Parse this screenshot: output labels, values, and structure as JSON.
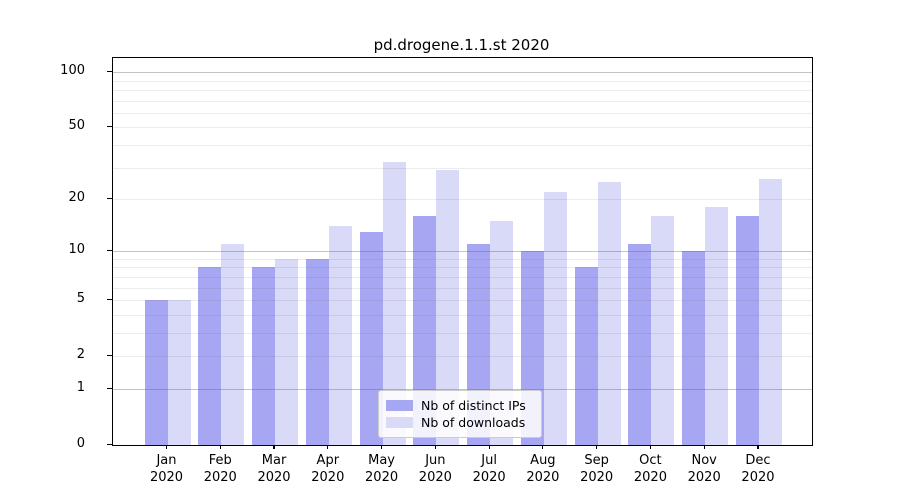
{
  "title": "pd.drogene.1.1.st 2020",
  "chart_data": {
    "type": "bar",
    "title": "pd.drogene.1.1.st 2020",
    "categories": [
      "Jan 2020",
      "Feb 2020",
      "Mar 2020",
      "Apr 2020",
      "May 2020",
      "Jun 2020",
      "Jul 2020",
      "Aug 2020",
      "Sep 2020",
      "Oct 2020",
      "Nov 2020",
      "Dec 2020"
    ],
    "x_tick_line1": [
      "Jan",
      "Feb",
      "Mar",
      "Apr",
      "May",
      "Jun",
      "Jul",
      "Aug",
      "Sep",
      "Oct",
      "Nov",
      "Dec"
    ],
    "x_tick_line2": [
      "2020",
      "2020",
      "2020",
      "2020",
      "2020",
      "2020",
      "2020",
      "2020",
      "2020",
      "2020",
      "2020",
      "2020"
    ],
    "series": [
      {
        "name": "Nb of distinct IPs",
        "color": "#a6a6f2",
        "values": [
          5,
          8,
          8,
          9,
          13,
          16,
          11,
          10,
          8,
          11,
          10,
          16
        ]
      },
      {
        "name": "Nb of downloads",
        "color": "#d9d9f8",
        "values": [
          5,
          11,
          9,
          14,
          32,
          29,
          15,
          22,
          25,
          16,
          18,
          26
        ]
      }
    ],
    "y_scale": "log1p",
    "ylim": [
      0,
      119
    ],
    "y_tick_values": [
      0,
      1,
      2,
      5,
      10,
      20,
      50,
      100
    ],
    "y_major_gridlines": [
      1,
      10,
      100
    ],
    "y_minor_gridlines": [
      2,
      3,
      4,
      5,
      6,
      7,
      8,
      9,
      20,
      30,
      40,
      50,
      60,
      70,
      80,
      90
    ],
    "grid": true,
    "legend_position": "inside lower center-right",
    "colors": {
      "bar_ips": "#a6a6f2",
      "bar_downloads": "#d9d9f8",
      "major_grid": "#c8c8c8",
      "minor_grid": "#ececec",
      "axis": "#000000",
      "legend_border": "#cccccc"
    }
  }
}
